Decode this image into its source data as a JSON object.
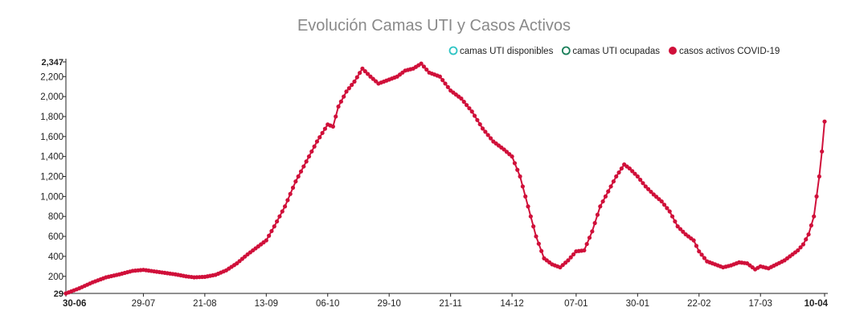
{
  "chart_data": {
    "type": "line",
    "title": "Evolución Camas UTI y Casos Activos",
    "legend_placement": "top-right",
    "legend": [
      {
        "label": "camas UTI disponibles",
        "style": "hollow",
        "color": "#2ec4c4"
      },
      {
        "label": "camas UTI ocupadas",
        "style": "hollow",
        "color": "#1a7f5a"
      },
      {
        "label": "casos activos COVID-19",
        "style": "filled",
        "color": "#d0103a"
      }
    ],
    "x_tick_labels": [
      "30-06",
      "29-07",
      "21-08",
      "13-09",
      "06-10",
      "29-10",
      "21-11",
      "14-12",
      "07-01",
      "30-01",
      "22-02",
      "17-03",
      "10-04"
    ],
    "x_tick_days": [
      0,
      29,
      52,
      75,
      98,
      121,
      144,
      167,
      191,
      214,
      237,
      260,
      284
    ],
    "x_range_days": [
      0,
      284
    ],
    "y_ticks": [
      29,
      200,
      400,
      600,
      800,
      1000,
      1200,
      1400,
      1600,
      1800,
      2000,
      2200,
      2347
    ],
    "y_tick_labels": [
      "29",
      "200",
      "400",
      "600",
      "800",
      "1,000",
      "1,200",
      "1,400",
      "1,600",
      "1,800",
      "2,000",
      "2,200",
      "2,347"
    ],
    "ylim": [
      29,
      2347
    ],
    "grid": false,
    "series": [
      {
        "name": "casos activos COVID-19",
        "color": "#d0103a",
        "anchors": [
          [
            0,
            29
          ],
          [
            5,
            80
          ],
          [
            10,
            140
          ],
          [
            15,
            190
          ],
          [
            20,
            220
          ],
          [
            25,
            255
          ],
          [
            29,
            265
          ],
          [
            33,
            250
          ],
          [
            37,
            235
          ],
          [
            41,
            220
          ],
          [
            45,
            200
          ],
          [
            48,
            190
          ],
          [
            52,
            195
          ],
          [
            56,
            215
          ],
          [
            60,
            260
          ],
          [
            64,
            330
          ],
          [
            68,
            420
          ],
          [
            72,
            500
          ],
          [
            75,
            560
          ],
          [
            78,
            700
          ],
          [
            82,
            900
          ],
          [
            86,
            1150
          ],
          [
            90,
            1350
          ],
          [
            94,
            1550
          ],
          [
            98,
            1720
          ],
          [
            100,
            1700
          ],
          [
            102,
            1900
          ],
          [
            105,
            2050
          ],
          [
            108,
            2150
          ],
          [
            111,
            2280
          ],
          [
            114,
            2200
          ],
          [
            117,
            2130
          ],
          [
            121,
            2170
          ],
          [
            124,
            2200
          ],
          [
            127,
            2260
          ],
          [
            130,
            2280
          ],
          [
            133,
            2330
          ],
          [
            136,
            2240
          ],
          [
            140,
            2200
          ],
          [
            144,
            2060
          ],
          [
            148,
            1980
          ],
          [
            152,
            1850
          ],
          [
            156,
            1680
          ],
          [
            160,
            1550
          ],
          [
            164,
            1470
          ],
          [
            167,
            1400
          ],
          [
            170,
            1200
          ],
          [
            173,
            900
          ],
          [
            176,
            600
          ],
          [
            179,
            380
          ],
          [
            182,
            320
          ],
          [
            185,
            290
          ],
          [
            188,
            360
          ],
          [
            191,
            450
          ],
          [
            194,
            460
          ],
          [
            197,
            650
          ],
          [
            200,
            900
          ],
          [
            203,
            1050
          ],
          [
            206,
            1200
          ],
          [
            209,
            1320
          ],
          [
            211,
            1280
          ],
          [
            214,
            1200
          ],
          [
            217,
            1100
          ],
          [
            220,
            1020
          ],
          [
            223,
            950
          ],
          [
            226,
            850
          ],
          [
            229,
            700
          ],
          [
            232,
            620
          ],
          [
            235,
            560
          ],
          [
            237,
            450
          ],
          [
            240,
            350
          ],
          [
            243,
            320
          ],
          [
            246,
            290
          ],
          [
            249,
            310
          ],
          [
            252,
            340
          ],
          [
            255,
            330
          ],
          [
            258,
            270
          ],
          [
            260,
            300
          ],
          [
            263,
            280
          ],
          [
            266,
            320
          ],
          [
            269,
            360
          ],
          [
            272,
            420
          ],
          [
            274,
            460
          ],
          [
            276,
            520
          ],
          [
            278,
            620
          ],
          [
            280,
            800
          ],
          [
            282,
            1200
          ],
          [
            283,
            1450
          ],
          [
            284,
            1750
          ]
        ]
      }
    ]
  }
}
